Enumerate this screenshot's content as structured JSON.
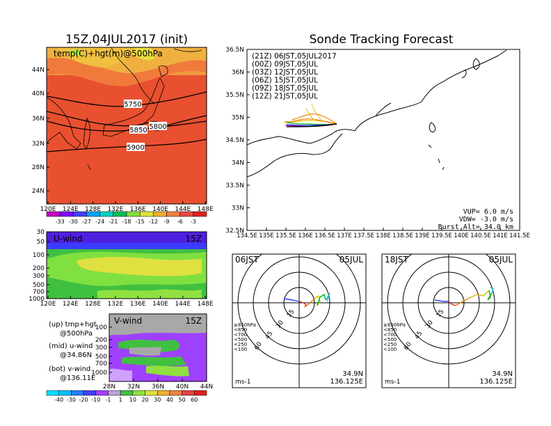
{
  "left": {
    "title": "15Z,04JUL2017 (init)",
    "map_label": "temp(C)+hgt(m)@500hPa",
    "contours": [
      "5750",
      "5800",
      "5850",
      "5900"
    ],
    "lat_ticks": [
      "44N",
      "40N",
      "36N",
      "32N",
      "28N",
      "24N"
    ],
    "lon_ticks": [
      "120E",
      "124E",
      "128E",
      "132E",
      "136E",
      "140E",
      "144E",
      "148E"
    ],
    "temp_scale": [
      "-33",
      "-30",
      "-27",
      "-24",
      "-21",
      "-18",
      "-15",
      "-12",
      "-9",
      "-6",
      "-3"
    ],
    "temp_colors": [
      "#c000c0",
      "#8000ff",
      "#4040ff",
      "#00a0ff",
      "#00d0c0",
      "#00c050",
      "#80e040",
      "#e0e040",
      "#f0b030",
      "#f08040",
      "#e84840",
      "#e02020"
    ],
    "uwind_label": "U-wind",
    "uwind_time": "15Z",
    "uwind_p_ticks": [
      "30",
      "50",
      "100",
      "200",
      "300",
      "500",
      "700",
      "1000"
    ],
    "vwind_label": "V-wind",
    "vwind_time": "15Z",
    "vwind_p_ticks": [
      "100",
      "200",
      "300",
      "500",
      "700",
      "1000"
    ],
    "vwind_lat_ticks": [
      "28N",
      "32N",
      "36N",
      "40N",
      "44N"
    ],
    "legend_lines": [
      "(up)  tmp+hgt",
      "@500hPa",
      "(mid)  u-wind",
      "@34.86N",
      "(bot)  v-wind",
      "@136.11E"
    ],
    "wind_scale": [
      "-40",
      "-30",
      "-20",
      "-10",
      "-1",
      "1",
      "10",
      "20",
      "30",
      "40",
      "50",
      "60"
    ],
    "wind_colors": [
      "#00e0ff",
      "#00c0ff",
      "#2080ff",
      "#4040ff",
      "#a040ff",
      "#c0a0e0",
      "#40c040",
      "#90e040",
      "#e0e040",
      "#f0b030",
      "#f08040",
      "#e84040",
      "#e02020"
    ]
  },
  "right": {
    "title": "Sonde Tracking Forecast",
    "lat_ticks": [
      "36.5N",
      "36N",
      "35.5N",
      "35N",
      "34.5N",
      "34N",
      "33.5N",
      "33N",
      "32.5N"
    ],
    "lon_ticks": [
      "134.5E",
      "135E",
      "135.5E",
      "136E",
      "136.5E",
      "137E",
      "137.5E",
      "138E",
      "138.5E",
      "139E",
      "139.5E",
      "140E",
      "140.5E",
      "141E",
      "141.5E"
    ],
    "legend": [
      {
        "label": "(21Z)  06JST,05JUL2017",
        "color": "#000000"
      },
      {
        "label": "(00Z)  09JST,05JUL",
        "color": "#a000c0"
      },
      {
        "label": "(03Z)  12JST,05JUL",
        "color": "#2040ff"
      },
      {
        "label": "(06Z)  15JST,05JUL",
        "color": "#00b000"
      },
      {
        "label": "(09Z)  18JST,05JUL",
        "color": "#e0c000"
      },
      {
        "label": "(12Z)  21JST,05JUL",
        "color": "#f08000"
      }
    ],
    "params": [
      "VUP=  6.0 m/s",
      "VDW= -3.0 m/s",
      "Burst Alt=  34.0 km"
    ],
    "hodo1": {
      "time": "06JST",
      "date": "05JUL",
      "lat": "34.9N",
      "lon": "136.125E",
      "unit": "ms-1",
      "rings": [
        "15",
        "30",
        "45",
        "60"
      ]
    },
    "hodo2": {
      "time": "18JST",
      "date": "05JUL",
      "lat": "34.9N",
      "lon": "136.125E",
      "unit": "ms-1",
      "rings": [
        "15",
        "30",
        "45",
        "60"
      ]
    },
    "hodo_levels": [
      {
        "label": "≥850hPa",
        "color": "#e02020"
      },
      {
        "label": "<850",
        "color": "#f08000"
      },
      {
        "label": "<700",
        "color": "#d0c000"
      },
      {
        "label": "<500",
        "color": "#00b000"
      },
      {
        "label": "<250",
        "color": "#00c0e0"
      },
      {
        "label": "<100",
        "color": "#2040ff"
      }
    ]
  }
}
